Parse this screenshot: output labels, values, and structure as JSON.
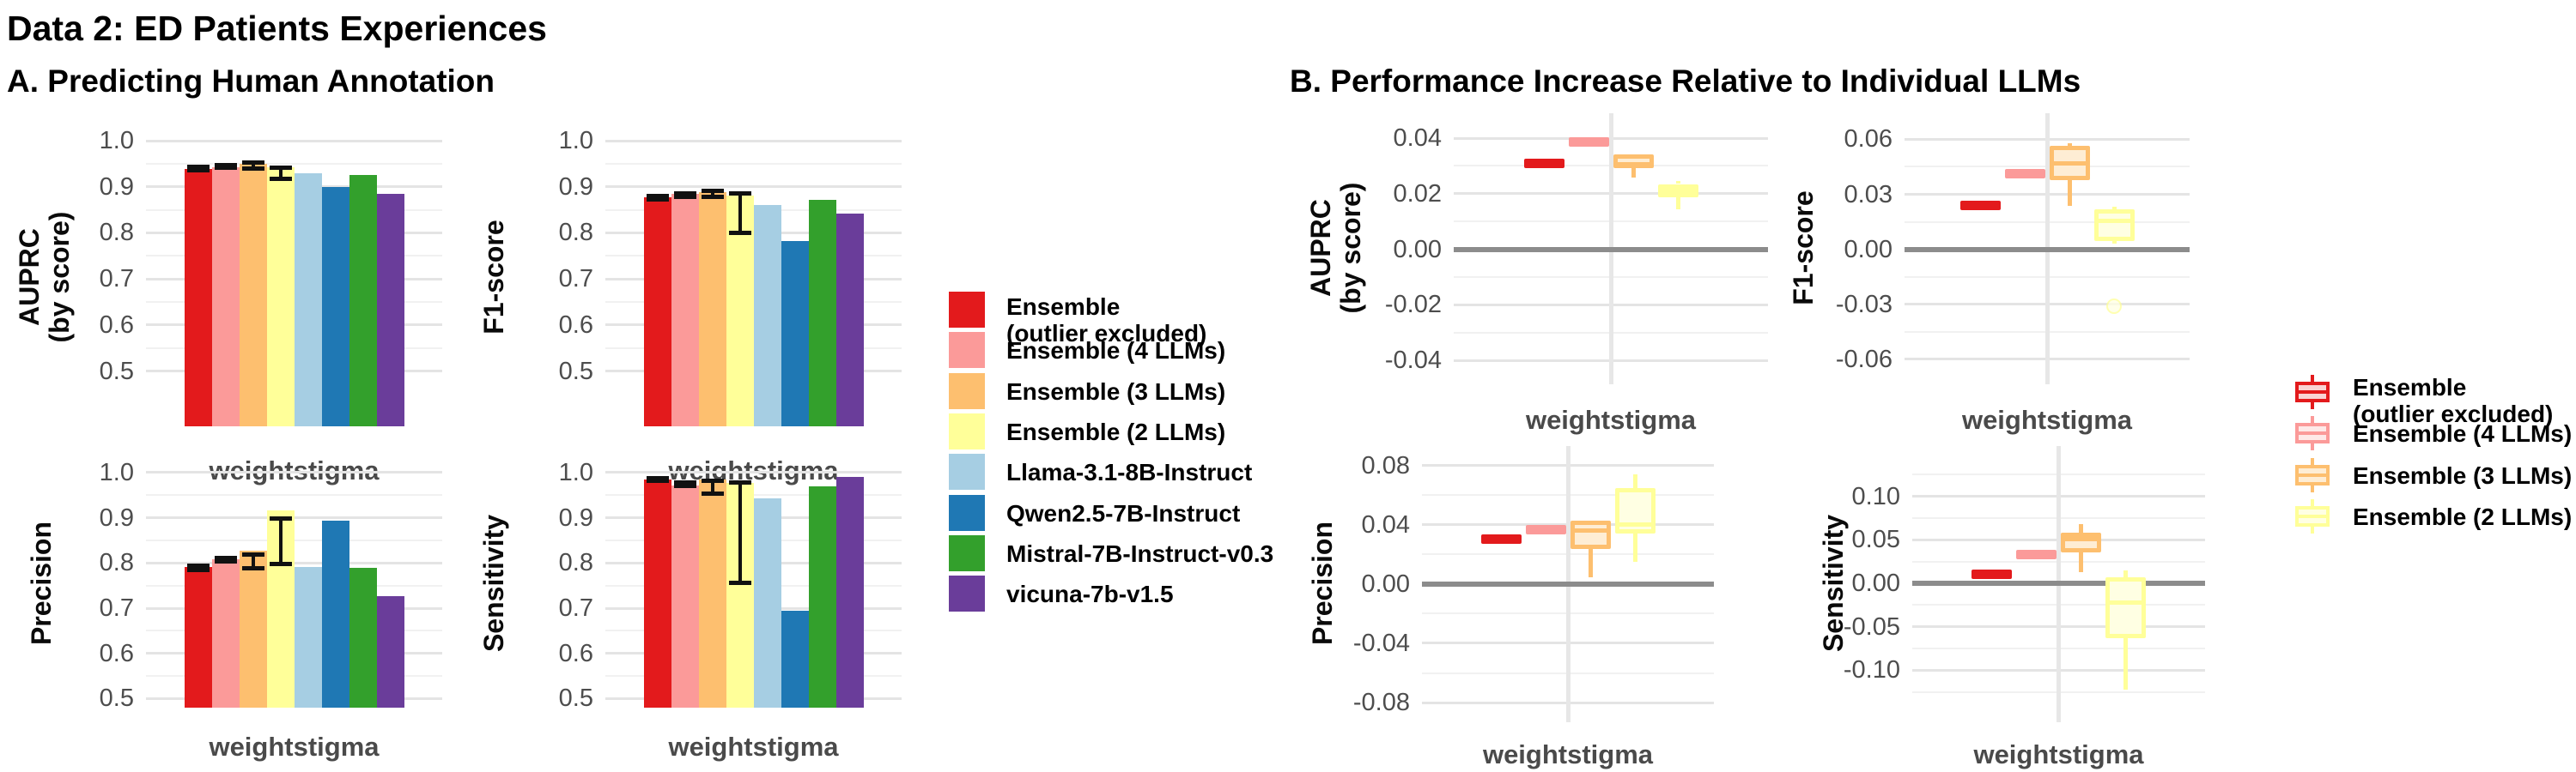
{
  "title": "Data 2: ED Patients Experiences",
  "chart_data": {
    "palette": {
      "series_colors": [
        "#E31A1C",
        "#FB9A99",
        "#FDBF6F",
        "#FFFF99",
        "#A6CEE3",
        "#1F78B4",
        "#33A02C",
        "#6A3D9A"
      ],
      "box_fills": [
        "#F9D3D3",
        "#FEE9E8",
        "#FEEDD4",
        "#FFFFE3"
      ],
      "grid_major": "#E4E4E4",
      "grid_minor": "#F1F1F1",
      "zero_line": "#8C8C8C",
      "center_line": "#E7E7E7",
      "error_bar": "#111111"
    },
    "panel_a": {
      "title": "A. Predicting Human Annotation",
      "type": "bar",
      "x_category": "weightstigma",
      "series": [
        "Ensemble (outlier excluded)",
        "Ensemble (4 LLMs)",
        "Ensemble (3 LLMs)",
        "Ensemble (2 LLMs)",
        "Llama-3.1-8B-Instruct",
        "Qwen2.5-7B-Instruct",
        "Mistral-7B-Instruct-v0.3",
        "vicuna-7b-v1.5"
      ],
      "subplots": [
        {
          "metric": "AUPRC (by score)",
          "ylabel": "AUPRC\n(by score)",
          "ylim": [
            0.38,
            1.03
          ],
          "ticks": [
            1.0,
            0.9,
            0.8,
            0.7,
            0.6,
            0.5
          ],
          "tick_labels": [
            "1.0",
            "0.9",
            "0.8",
            "0.7",
            "0.6",
            "0.5"
          ],
          "minor_ticks": [
            0.95,
            0.85,
            0.75,
            0.65,
            0.55
          ],
          "values": [
            0.938,
            0.943,
            0.949,
            0.942,
            0.93,
            0.899,
            0.926,
            0.884
          ],
          "error_bars": [
            [
              0.936,
              0.944
            ],
            [
              0.942,
              0.948
            ],
            [
              0.94,
              0.953
            ],
            [
              0.917,
              0.942
            ],
            null,
            null,
            null,
            null
          ]
        },
        {
          "metric": "F1-score",
          "ylabel": "F1-score",
          "ylim": [
            0.38,
            1.03
          ],
          "ticks": [
            1.0,
            0.9,
            0.8,
            0.7,
            0.6,
            0.5
          ],
          "tick_labels": [
            "1.0",
            "0.9",
            "0.8",
            "0.7",
            "0.6",
            "0.5"
          ],
          "minor_ticks": [
            0.95,
            0.85,
            0.75,
            0.65,
            0.55
          ],
          "values": [
            0.878,
            0.884,
            0.888,
            0.881,
            0.861,
            0.782,
            0.872,
            0.842
          ],
          "error_bars": [
            [
              0.872,
              0.88
            ],
            [
              0.878,
              0.886
            ],
            [
              0.878,
              0.892
            ],
            [
              0.8,
              0.885
            ],
            null,
            null,
            null,
            null
          ]
        },
        {
          "metric": "Precision",
          "ylabel": "Precision",
          "ylim": [
            0.48,
            1.03
          ],
          "ticks": [
            1.0,
            0.9,
            0.8,
            0.7,
            0.6,
            0.5
          ],
          "tick_labels": [
            "1.0",
            "0.9",
            "0.8",
            "0.7",
            "0.6",
            "0.5"
          ],
          "minor_ticks": [
            0.95,
            0.85,
            0.75,
            0.65,
            0.55
          ],
          "values": [
            0.791,
            0.808,
            0.828,
            0.917,
            0.791,
            0.894,
            0.789,
            0.727
          ],
          "error_bars": [
            [
              0.785,
              0.793
            ],
            [
              0.803,
              0.811
            ],
            [
              0.789,
              0.818
            ],
            [
              0.798,
              0.899
            ],
            null,
            null,
            null,
            null
          ]
        },
        {
          "metric": "Sensitivity",
          "ylabel": "Sensitivity",
          "ylim": [
            0.48,
            1.03
          ],
          "ticks": [
            1.0,
            0.9,
            0.8,
            0.7,
            0.6,
            0.5
          ],
          "tick_labels": [
            "1.0",
            "0.9",
            "0.8",
            "0.7",
            "0.6",
            "0.5"
          ],
          "minor_ticks": [
            0.95,
            0.85,
            0.75,
            0.65,
            0.55
          ],
          "values": [
            0.984,
            0.972,
            0.984,
            0.976,
            0.943,
            0.694,
            0.969,
            0.99
          ],
          "error_bars": [
            [
              0.981,
              0.988
            ],
            [
              0.971,
              0.978
            ],
            [
              0.953,
              0.982
            ],
            [
              0.756,
              0.978
            ],
            null,
            null,
            null,
            null
          ]
        }
      ]
    },
    "panel_b": {
      "title": "B. Performance Increase Relative to Individual LLMs",
      "type": "box",
      "x_category": "weightstigma",
      "series": [
        "Ensemble (outlier excluded)",
        "Ensemble (4 LLMs)",
        "Ensemble (3 LLMs)",
        "Ensemble (2 LLMs)"
      ],
      "subplots": [
        {
          "metric": "AUPRC (by score)",
          "ylabel": "AUPRC\n(by score)",
          "ylim": [
            -0.0455,
            0.0465
          ],
          "ticks": [
            0.04,
            0.02,
            0.0,
            -0.02,
            -0.04
          ],
          "tick_labels": [
            "0.04",
            "0.02",
            "0.00",
            "-0.02",
            "-0.04"
          ],
          "minor_ticks": [
            0.03,
            0.01,
            -0.01,
            -0.03
          ],
          "boxes": [
            {
              "q1": 0.0302,
              "median": 0.031,
              "q3": 0.0318,
              "whisker_low": null,
              "whisker_high": null,
              "outliers": []
            },
            {
              "q1": 0.0378,
              "median": 0.0385,
              "q3": 0.0392,
              "whisker_low": null,
              "whisker_high": null,
              "outliers": []
            },
            {
              "q1": 0.0293,
              "median": 0.0305,
              "q3": 0.034,
              "whisker_low": 0.0258,
              "whisker_high": null,
              "outliers": []
            },
            {
              "q1": 0.0188,
              "median": 0.021,
              "q3": 0.0235,
              "whisker_low": 0.0143,
              "whisker_high": 0.0245,
              "outliers": []
            }
          ]
        },
        {
          "metric": "F1-score",
          "ylabel": "F1-score",
          "ylim": [
            -0.069,
            0.0705
          ],
          "ticks": [
            0.06,
            0.03,
            0.0,
            -0.03,
            -0.06
          ],
          "tick_labels": [
            "0.06",
            "0.03",
            "0.00",
            "-0.03",
            "-0.06"
          ],
          "minor_ticks": [
            0.045,
            0.015,
            -0.015,
            -0.045
          ],
          "boxes": [
            {
              "q1": 0.0232,
              "median": 0.024,
              "q3": 0.0248,
              "whisker_low": null,
              "whisker_high": null,
              "outliers": []
            },
            {
              "q1": 0.0405,
              "median": 0.0412,
              "q3": 0.042,
              "whisker_low": null,
              "whisker_high": null,
              "outliers": []
            },
            {
              "q1": 0.0375,
              "median": 0.0468,
              "q3": 0.0565,
              "whisker_low": 0.0238,
              "whisker_high": 0.0578,
              "outliers": []
            },
            {
              "q1": 0.0045,
              "median": 0.0155,
              "q3": 0.022,
              "whisker_low": 0.003,
              "whisker_high": 0.0232,
              "outliers": [
                -0.031
              ]
            }
          ]
        },
        {
          "metric": "Precision",
          "ylabel": "Precision",
          "ylim": [
            -0.0875,
            0.0885
          ],
          "ticks": [
            0.08,
            0.04,
            0.0,
            -0.04,
            -0.08
          ],
          "tick_labels": [
            "0.08",
            "0.04",
            "0.00",
            "-0.04",
            "-0.08"
          ],
          "minor_ticks": [
            0.06,
            0.02,
            -0.02,
            -0.06
          ],
          "boxes": [
            {
              "q1": 0.0295,
              "median": 0.0302,
              "q3": 0.031,
              "whisker_low": null,
              "whisker_high": null,
              "outliers": []
            },
            {
              "q1": 0.0358,
              "median": 0.0365,
              "q3": 0.0372,
              "whisker_low": null,
              "whisker_high": null,
              "outliers": []
            },
            {
              "q1": 0.0235,
              "median": 0.0363,
              "q3": 0.043,
              "whisker_low": 0.0048,
              "whisker_high": null,
              "outliers": []
            },
            {
              "q1": 0.0338,
              "median": 0.04,
              "q3": 0.065,
              "whisker_low": 0.015,
              "whisker_high": 0.074,
              "outliers": []
            }
          ]
        },
        {
          "metric": "Sensitivity",
          "ylabel": "Sensitivity",
          "ylim": [
            -0.15,
            0.15
          ],
          "ticks": [
            0.1,
            0.05,
            0.0,
            -0.05,
            -0.1
          ],
          "tick_labels": [
            "0.10",
            "0.05",
            "0.00",
            "-0.05",
            "-0.10"
          ],
          "minor_ticks": [
            0.125,
            0.075,
            0.025,
            -0.025,
            -0.075,
            -0.125
          ],
          "boxes": [
            {
              "q1": 0.0095,
              "median": 0.0102,
              "q3": 0.011,
              "whisker_low": null,
              "whisker_high": null,
              "outliers": []
            },
            {
              "q1": 0.0325,
              "median": 0.0332,
              "q3": 0.034,
              "whisker_low": null,
              "whisker_high": null,
              "outliers": []
            },
            {
              "q1": 0.036,
              "median": 0.051,
              "q3": 0.058,
              "whisker_low": 0.013,
              "whisker_high": 0.068,
              "outliers": []
            },
            {
              "q1": -0.063,
              "median": -0.022,
              "q3": 0.007,
              "whisker_low": -0.122,
              "whisker_high": 0.015,
              "outliers": []
            }
          ]
        }
      ]
    },
    "legend_a": {
      "items": [
        {
          "label": "Ensemble\n(outlier excluded)",
          "color": "#E31A1C"
        },
        {
          "label": "Ensemble (4 LLMs)",
          "color": "#FB9A99"
        },
        {
          "label": "Ensemble (3 LLMs)",
          "color": "#FDBF6F"
        },
        {
          "label": "Ensemble (2 LLMs)",
          "color": "#FFFF99"
        },
        {
          "label": "Llama-3.1-8B-Instruct",
          "color": "#A6CEE3"
        },
        {
          "label": "Qwen2.5-7B-Instruct",
          "color": "#1F78B4"
        },
        {
          "label": "Mistral-7B-Instruct-v0.3",
          "color": "#33A02C"
        },
        {
          "label": "vicuna-7b-v1.5",
          "color": "#6A3D9A"
        }
      ]
    },
    "legend_b": {
      "items": [
        {
          "label": "Ensemble\n(outlier excluded)",
          "color": "#E31A1C",
          "fill": "#F9D3D3"
        },
        {
          "label": "Ensemble (4 LLMs)",
          "color": "#FB9A99",
          "fill": "#FEE9E8"
        },
        {
          "label": "Ensemble (3 LLMs)",
          "color": "#FDBF6F",
          "fill": "#FEEDD4"
        },
        {
          "label": "Ensemble (2 LLMs)",
          "color": "#FFFF99",
          "fill": "#FFFFE3"
        }
      ]
    }
  }
}
